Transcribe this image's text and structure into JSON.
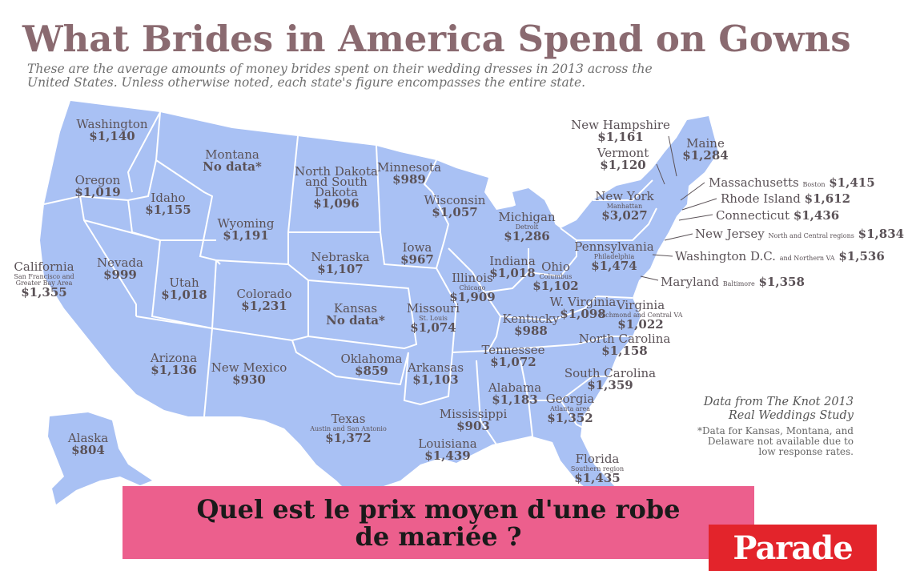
{
  "title": "What Brides in America Spend on Gowns",
  "subtitle": "These are the average amounts of money brides spent on their wedding dresses in 2013 across the United States. Unless otherwise noted, each state's figure encompasses the entire state.",
  "colors": {
    "land": "#a9c1f4",
    "border": "#ffffff",
    "title": "#8a6a70",
    "banner": "#ec5f8d",
    "logo": "#e3242b"
  },
  "states": [
    {
      "name": "Washington",
      "value": "$1,140"
    },
    {
      "name": "Oregon",
      "value": "$1,019"
    },
    {
      "name": "California",
      "sub": "San Francisco and Greater Bay Area",
      "value": "$1,355"
    },
    {
      "name": "Idaho",
      "value": "$1,155"
    },
    {
      "name": "Nevada",
      "value": "$999"
    },
    {
      "name": "Montana",
      "value": "No data*"
    },
    {
      "name": "Wyoming",
      "value": "$1,191"
    },
    {
      "name": "Utah",
      "value": "$1,018"
    },
    {
      "name": "Arizona",
      "value": "$1,136"
    },
    {
      "name": "Colorado",
      "value": "$1,231"
    },
    {
      "name": "New Mexico",
      "value": "$930"
    },
    {
      "name": "North Dakota and South Dakota",
      "value": "$1,096"
    },
    {
      "name": "Nebraska",
      "value": "$1,107"
    },
    {
      "name": "Kansas",
      "value": "No data*"
    },
    {
      "name": "Oklahoma",
      "value": "$859"
    },
    {
      "name": "Texas",
      "sub": "Austin and San Antonio",
      "value": "$1,372"
    },
    {
      "name": "Minnesota",
      "value": "$989"
    },
    {
      "name": "Iowa",
      "value": "$967"
    },
    {
      "name": "Missouri",
      "sub": "St. Louis",
      "value": "$1,074"
    },
    {
      "name": "Arkansas",
      "value": "$1,103"
    },
    {
      "name": "Louisiana",
      "value": "$1,439"
    },
    {
      "name": "Wisconsin",
      "value": "$1,057"
    },
    {
      "name": "Illinois",
      "sub": "Chicago",
      "value": "$1,909"
    },
    {
      "name": "Mississippi",
      "value": "$903"
    },
    {
      "name": "Michigan",
      "sub": "Detroit",
      "value": "$1,286"
    },
    {
      "name": "Indiana",
      "value": "$1,018"
    },
    {
      "name": "Ohio",
      "sub": "Columbus",
      "value": "$1,102"
    },
    {
      "name": "Kentucky",
      "value": "$988"
    },
    {
      "name": "Tennessee",
      "value": "$1,072"
    },
    {
      "name": "Alabama",
      "value": "$1,183"
    },
    {
      "name": "Georgia",
      "sub": "Atlanta area",
      "value": "$1,352"
    },
    {
      "name": "Florida",
      "sub": "Southern region",
      "value": "$1,435"
    },
    {
      "name": "South Carolina",
      "value": "$1,359"
    },
    {
      "name": "North Carolina",
      "value": "$1,158"
    },
    {
      "name": "Virginia",
      "sub": "Richmond and Central VA",
      "value": "$1,022"
    },
    {
      "name": "W. Virginia",
      "value": "$1,098"
    },
    {
      "name": "Pennsylvania",
      "sub": "Philadelphia",
      "value": "$1,474"
    },
    {
      "name": "New York",
      "sub": "Manhattan",
      "value": "$3,027"
    },
    {
      "name": "Vermont",
      "value": "$1,120"
    },
    {
      "name": "New Hampshire",
      "value": "$1,161"
    },
    {
      "name": "Maine",
      "value": "$1,284"
    },
    {
      "name": "Alaska",
      "value": "$804"
    }
  ],
  "leaders": [
    {
      "name": "Massachusetts",
      "sub": "Boston",
      "value": "$1,415"
    },
    {
      "name": "Rhode Island",
      "value": "$1,612"
    },
    {
      "name": "Connecticut",
      "value": "$1,436"
    },
    {
      "name": "New Jersey",
      "sub": "North and Central regions",
      "value": "$1,834"
    },
    {
      "name": "Washington D.C.",
      "sub": "and Northern VA",
      "value": "$1,536"
    },
    {
      "name": "Maryland",
      "sub": "Baltimore",
      "value": "$1,358"
    }
  ],
  "source": "Data from The Knot 2013 Real Weddings Study",
  "note": "*Data for Kansas, Montana, and Delaware not available due to low response rates.",
  "banner": "Quel est le prix moyen d'une robe de mariée ?",
  "logo": "Parade"
}
